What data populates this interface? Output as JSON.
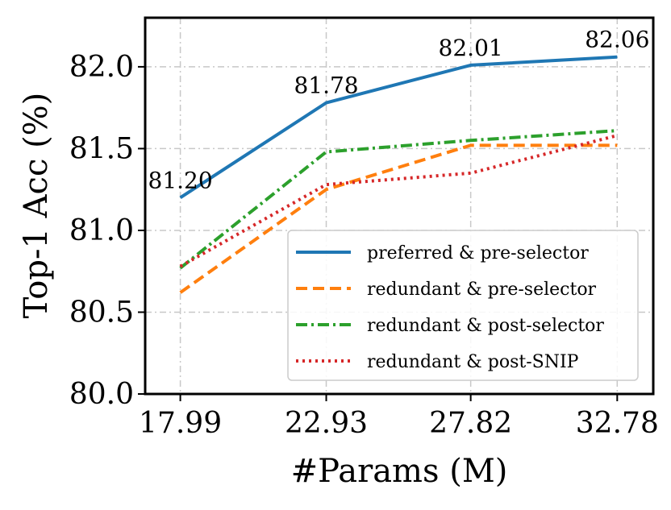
{
  "chart_data": {
    "type": "line",
    "title": "",
    "xlabel": "#Params (M)",
    "ylabel": "Top-1 Acc (%)",
    "categories": [
      "17.99",
      "22.93",
      "27.82",
      "32.78"
    ],
    "x": [
      17.99,
      22.93,
      27.82,
      32.78
    ],
    "ylim": [
      80.0,
      82.3
    ],
    "xlim": [
      16.8,
      34.0
    ],
    "yticks": [
      80.0,
      80.5,
      81.0,
      81.5,
      82.0
    ],
    "ytick_labels": [
      "80.0",
      "80.5",
      "81.0",
      "81.5",
      "82.0"
    ],
    "grid": true,
    "legend_position": "lower-right",
    "series": [
      {
        "name": "preferred & pre-selector",
        "color": "#1f77b4",
        "style": "solid",
        "values": [
          81.2,
          81.78,
          82.01,
          82.06
        ]
      },
      {
        "name": "redundant & pre-selector",
        "color": "#ff7f0e",
        "style": "dashed",
        "values": [
          80.62,
          81.25,
          81.52,
          81.52
        ]
      },
      {
        "name": "redundant & post-selector",
        "color": "#2ca02c",
        "style": "dashdot",
        "values": [
          80.77,
          81.48,
          81.55,
          81.61
        ]
      },
      {
        "name": "redundant & post-SNIP",
        "color": "#d62728",
        "style": "dotted",
        "values": [
          80.78,
          81.28,
          81.35,
          81.58
        ]
      }
    ],
    "annotations": [
      {
        "series": 0,
        "index": 0,
        "text": "81.20"
      },
      {
        "series": 0,
        "index": 1,
        "text": "81.78"
      },
      {
        "series": 0,
        "index": 2,
        "text": "82.01"
      },
      {
        "series": 0,
        "index": 3,
        "text": "82.06"
      }
    ]
  }
}
